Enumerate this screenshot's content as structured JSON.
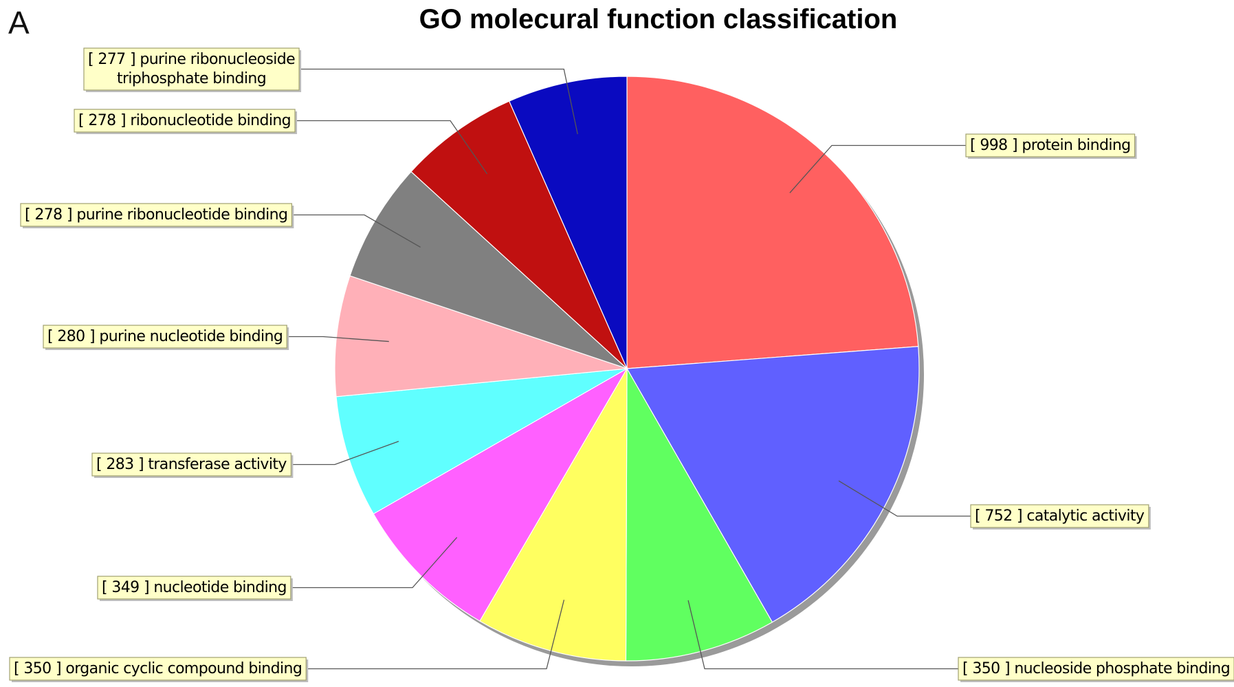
{
  "panel_letter": "A",
  "chart_data": {
    "type": "pie",
    "title": "GO molecural function classification",
    "start": "top, clockwise",
    "slices": [
      {
        "label": "[ 998 ] protein binding",
        "value": 998,
        "color": "#FF6060"
      },
      {
        "label": "[ 752 ] catalytic activity",
        "value": 752,
        "color": "#6060FF"
      },
      {
        "label": "[ 350 ] nucleoside phosphate binding",
        "value": 350,
        "color": "#60FF60"
      },
      {
        "label": "[ 350 ] organic cyclic compound binding",
        "value": 350,
        "color": "#FFFF60"
      },
      {
        "label": "[ 349 ] nucleotide binding",
        "value": 349,
        "color": "#FF60FF"
      },
      {
        "label": "[ 283 ] transferase activity",
        "value": 283,
        "color": "#60FFFF"
      },
      {
        "label": "[ 280 ] purine nucleotide binding",
        "value": 280,
        "color": "#FFB0B8"
      },
      {
        "label": "[ 278 ] purine ribonucleotide binding",
        "value": 278,
        "color": "#808080"
      },
      {
        "label": "[ 278 ] ribonucleotide binding",
        "value": 278,
        "color": "#C01010"
      },
      {
        "label": "[ 277 ] purine ribonucleoside triphosphate binding",
        "value": 277,
        "color": "#0A0AC0"
      }
    ]
  }
}
